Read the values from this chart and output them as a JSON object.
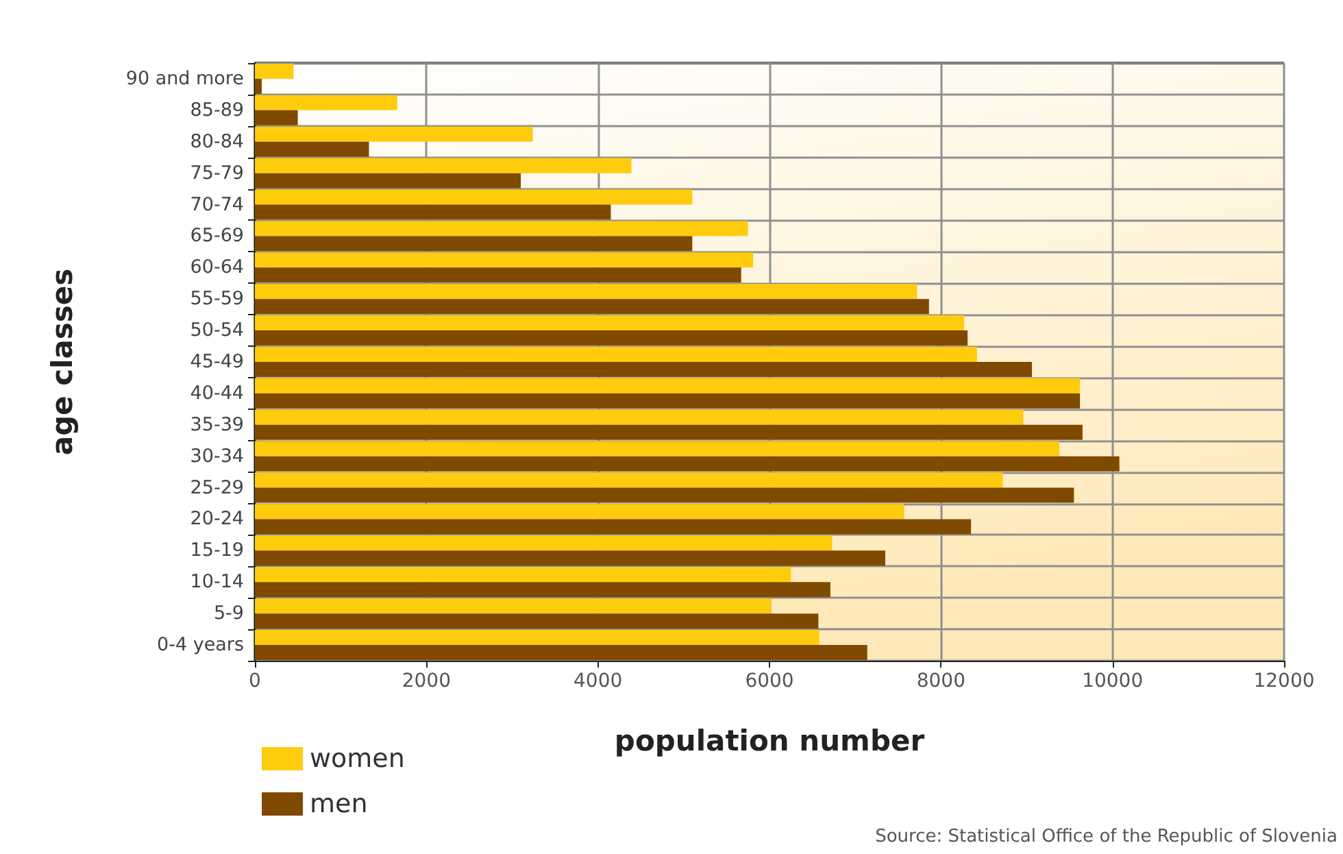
{
  "chart_data": {
    "type": "bar",
    "orientation": "horizontal",
    "xlabel": "population number",
    "ylabel": "age classes",
    "categories": [
      "90 and more",
      "85-89",
      "80-84",
      "75-79",
      "70-74",
      "65-69",
      "60-64",
      "55-59",
      "50-54",
      "45-49",
      "40-44",
      "35-39",
      "30-34",
      "25-29",
      "20-24",
      "15-19",
      "10-14",
      "5-9",
      "0-4 years"
    ],
    "series": [
      {
        "name": "women",
        "color": "#ffcc0d",
        "values": [
          450,
          1660,
          3240,
          4390,
          5100,
          5750,
          5810,
          7720,
          8270,
          8420,
          9620,
          8960,
          9380,
          8720,
          7570,
          6730,
          6250,
          6020,
          6580
        ]
      },
      {
        "name": "men",
        "color": "#7f4a00",
        "values": [
          80,
          500,
          1330,
          3100,
          4150,
          5100,
          5670,
          7860,
          8310,
          9060,
          9620,
          9650,
          10080,
          9550,
          8350,
          7350,
          6710,
          6570,
          7140
        ]
      }
    ],
    "xlim": [
      0,
      12000
    ],
    "xticks": [
      0,
      2000,
      4000,
      6000,
      8000,
      10000,
      12000
    ],
    "grid": true,
    "legend": "bottom left",
    "annotations": [
      "Source: Statistical Office of the Republic of Slovenia"
    ]
  }
}
